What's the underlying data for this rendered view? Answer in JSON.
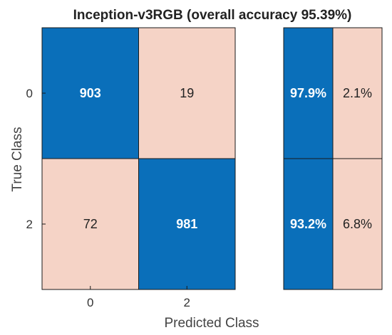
{
  "chart_data": {
    "type": "heatmap",
    "title": "Inception-v3RGB (overall accuracy 95.39%)",
    "xlabel": "Predicted Class",
    "ylabel": "True Class",
    "classes": [
      "0",
      "2"
    ],
    "matrix": [
      [
        903,
        19
      ],
      [
        72,
        981
      ]
    ],
    "row_summary": [
      [
        "97.9%",
        "2.1%"
      ],
      [
        "93.2%",
        "6.8%"
      ]
    ],
    "colors": {
      "correct": "#0a6fba",
      "incorrect": "#f5d3c6",
      "correct_text": "#ffffff",
      "incorrect_text": "#222222",
      "border": "#1a1a1a"
    }
  }
}
